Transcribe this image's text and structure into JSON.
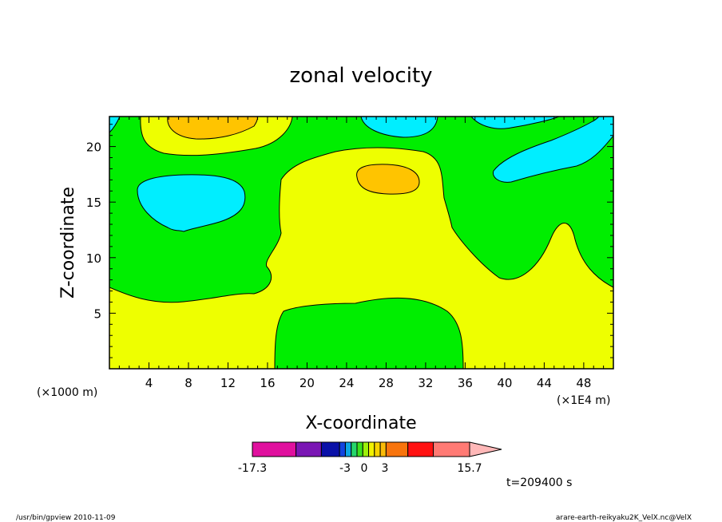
{
  "chart_data": {
    "type": "heatmap",
    "title": "zonal velocity",
    "xlabel": "X-coordinate",
    "ylabel": "Z-coordinate",
    "x_unit_left": "(×1000 m)",
    "x_unit_right": "(×1E4 m)",
    "x_ticks": [
      "4",
      "8",
      "12",
      "16",
      "20",
      "24",
      "28",
      "32",
      "36",
      "40",
      "44",
      "48"
    ],
    "y_ticks": [
      "5",
      "10",
      "15",
      "20"
    ],
    "xlim": [
      0,
      51
    ],
    "ylim": [
      0,
      22.7
    ],
    "colorbar": {
      "tick_labels": [
        "-17.3",
        "-3",
        "0",
        "3",
        "15.7"
      ],
      "colors": [
        "#e0109e",
        "#7a16b4",
        "#0a11a8",
        "#1245e0",
        "#0ea6e4",
        "#25d66b",
        "#3be11e",
        "#9cf00a",
        "#f2f200",
        "#f7d300",
        "#fabb08",
        "#f8740d",
        "#ff1212",
        "#ff7a74",
        "#ffb8b8"
      ],
      "min": -17.3,
      "max": 15.7
    },
    "level_colors": {
      "cyan": "#00eeff",
      "green": "#00ee00",
      "yellow": "#eeff00",
      "orange": "#ffc400"
    },
    "time_label": "t=209400 s"
  },
  "footer": {
    "left": "/usr/bin/gpview   2010-11-09",
    "right": "arare-earth-reikyaku2K_VelX.nc@VelX"
  }
}
